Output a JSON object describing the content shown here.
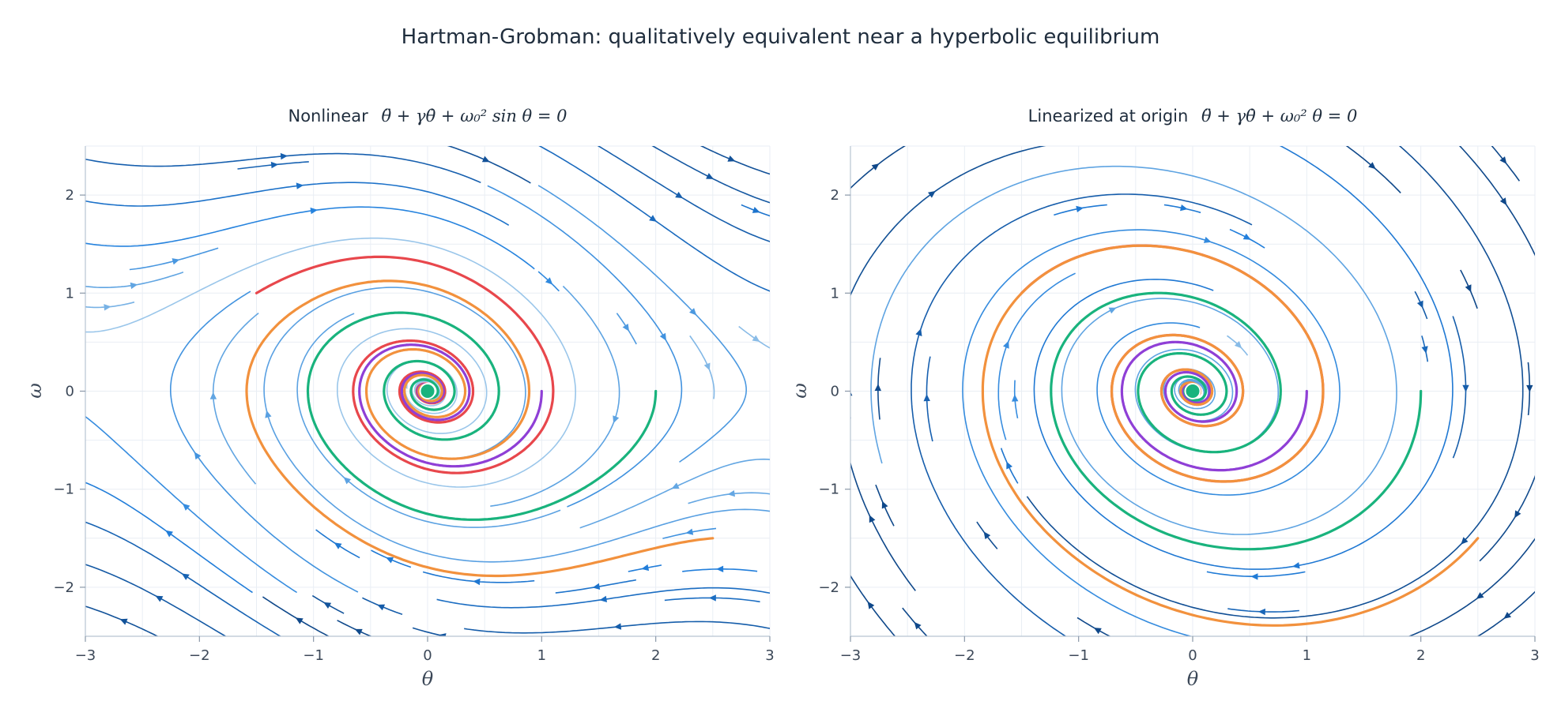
{
  "figure": {
    "suptitle": "Hartman-Grobman:  qualitatively equivalent near a hyperbolic equilibrium"
  },
  "chart_data": [
    {
      "type": "streamplot",
      "title_prefix": "Nonlinear",
      "equation": "θ̈ + γθ̇ + ω₀² sin θ = 0",
      "system": "nonlinear",
      "xlabel": "θ",
      "ylabel": "ω",
      "xlim": [
        -3,
        3
      ],
      "ylim": [
        -2.5,
        2.5
      ],
      "xticks": [
        -3,
        -2,
        -1,
        0,
        1,
        2,
        3
      ],
      "yticks": [
        -2,
        -1,
        0,
        1,
        2
      ],
      "grid": true,
      "equilibrium": {
        "x": 0,
        "y": 0,
        "color": "#19b37d"
      },
      "trajectories": [
        {
          "start": [
            2.0,
            0.0
          ],
          "color": "#19b37d"
        },
        {
          "start": [
            -1.5,
            1.0
          ],
          "color": "#e8474c"
        },
        {
          "start": [
            1.0,
            0.0
          ],
          "color": "#8f3fd6"
        },
        {
          "start": [
            2.5,
            -1.5
          ],
          "color": "#f2913d"
        }
      ]
    },
    {
      "type": "streamplot",
      "title_prefix": "Linearized at origin",
      "equation": "θ̈ + γθ̇ + ω₀² θ = 0",
      "system": "linear",
      "xlabel": "θ",
      "ylabel": "ω",
      "xlim": [
        -3,
        3
      ],
      "ylim": [
        -2.5,
        2.5
      ],
      "xticks": [
        -3,
        -2,
        -1,
        0,
        1,
        2,
        3
      ],
      "yticks": [
        -2,
        -1,
        0,
        1,
        2
      ],
      "grid": true,
      "equilibrium": {
        "x": 0,
        "y": 0,
        "color": "#19b37d"
      },
      "trajectories": [
        {
          "start": [
            2.0,
            0.0
          ],
          "color": "#19b37d"
        },
        {
          "start": [
            -1.5,
            1.0
          ],
          "color": "#e8474c"
        },
        {
          "start": [
            1.0,
            0.0
          ],
          "color": "#8f3fd6"
        },
        {
          "start": [
            2.5,
            -1.5
          ],
          "color": "#f2913d"
        }
      ]
    }
  ]
}
